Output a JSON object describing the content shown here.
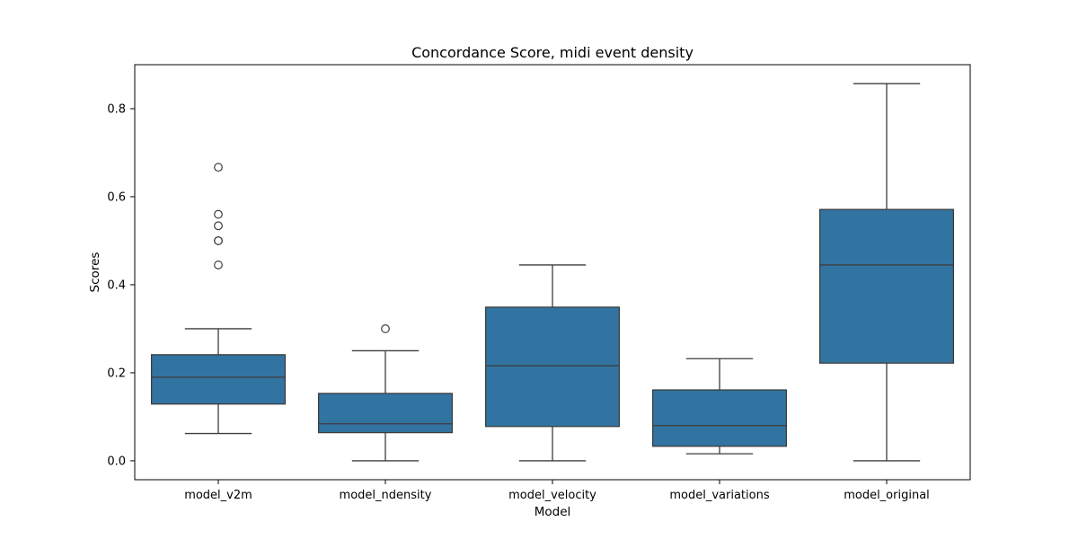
{
  "chart_data": {
    "type": "box",
    "title": "Concordance Score, midi event density",
    "xlabel": "Model",
    "ylabel": "Scores",
    "ylim": [
      -0.043,
      0.9
    ],
    "yticks": [
      0.0,
      0.2,
      0.4,
      0.6,
      0.8
    ],
    "ytick_labels": [
      "0.0",
      "0.2",
      "0.4",
      "0.6",
      "0.8"
    ],
    "grid": false,
    "legend": "none",
    "colors": {
      "box_fill": "#3274a1",
      "line": "#3d3d3d",
      "frame": "#000000"
    },
    "categories": [
      "model_v2m",
      "model_ndensity",
      "model_velocity",
      "model_variations",
      "model_original"
    ],
    "boxes": [
      {
        "whisker_low": 0.062,
        "q1": 0.129,
        "median": 0.19,
        "q3": 0.241,
        "whisker_high": 0.3,
        "outliers": [
          0.445,
          0.5,
          0.5,
          0.534,
          0.56,
          0.667
        ]
      },
      {
        "whisker_low": 0.0,
        "q1": 0.064,
        "median": 0.084,
        "q3": 0.153,
        "whisker_high": 0.25,
        "outliers": [
          0.3
        ]
      },
      {
        "whisker_low": 0.0,
        "q1": 0.078,
        "median": 0.216,
        "q3": 0.349,
        "whisker_high": 0.445,
        "outliers": []
      },
      {
        "whisker_low": 0.016,
        "q1": 0.033,
        "median": 0.08,
        "q3": 0.161,
        "whisker_high": 0.232,
        "outliers": []
      },
      {
        "whisker_low": 0.0,
        "q1": 0.222,
        "median": 0.445,
        "q3": 0.571,
        "whisker_high": 0.857,
        "outliers": []
      }
    ]
  }
}
